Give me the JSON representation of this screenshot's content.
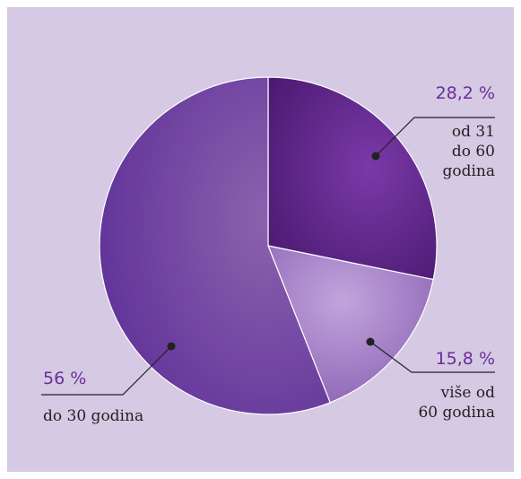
{
  "chart_data": {
    "type": "pie",
    "colors": {
      "background": "#d5c9e3",
      "label_value": "#6b2f98",
      "label_text": "#222222",
      "leader_line": "#222222",
      "slice_edge": "#ffffff"
    },
    "slices": [
      {
        "key": "s31_60",
        "value": 28.2,
        "label": "28,2 %",
        "caption_lines": [
          "od 31",
          "do 60",
          "godina"
        ],
        "color_inner": "#7a3aa8",
        "color_outer": "#4a186f"
      },
      {
        "key": "s60plus",
        "value": 15.8,
        "label": "15,8 %",
        "caption_lines": [
          "više od",
          "60 godina"
        ],
        "color_inner": "#c2a4dc",
        "color_outer": "#8a62b4"
      },
      {
        "key": "s30",
        "value": 56,
        "label": "56 %",
        "caption_lines": [
          "do 30 godina"
        ],
        "color_inner": "#8b62ad",
        "color_outer": "#61339a"
      }
    ]
  }
}
